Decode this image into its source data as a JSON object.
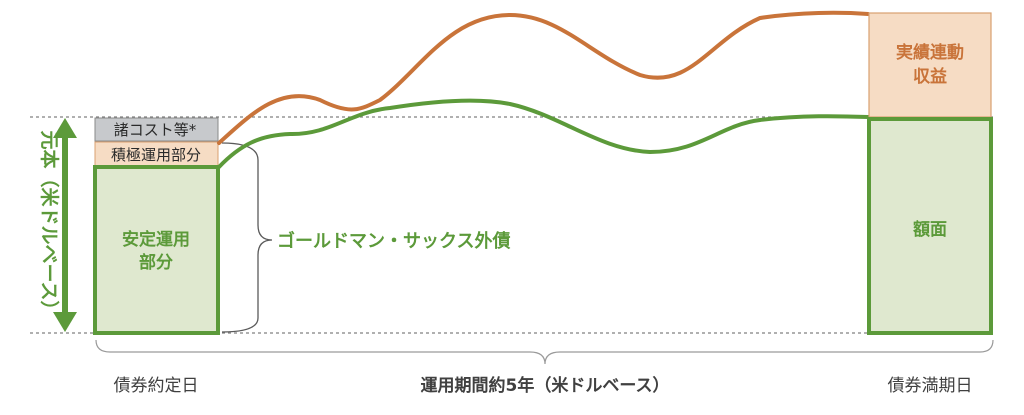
{
  "labels": {
    "principal": "元本（米ドルベース）",
    "costs": "諸コスト等*",
    "active_part": "積極運用部分",
    "stable_part_line1": "安定運用",
    "stable_part_line2": "部分",
    "bond_name": "ゴールドマン・サックス外債",
    "performance_line1": "実績連動",
    "performance_line2": "収益",
    "face_value": "額面",
    "start_date": "債券約定日",
    "period": "運用期間約5年（米ドルベース）",
    "maturity_date": "債券満期日"
  },
  "colors": {
    "green": "#5c9a3a",
    "green_fill": "#dfe8cf",
    "orange": "#c9743a",
    "orange_fill": "#f6dcc4",
    "grey_fill": "#c7c9cc",
    "grey_text": "#404040",
    "bracket": "#9a9a9a"
  }
}
